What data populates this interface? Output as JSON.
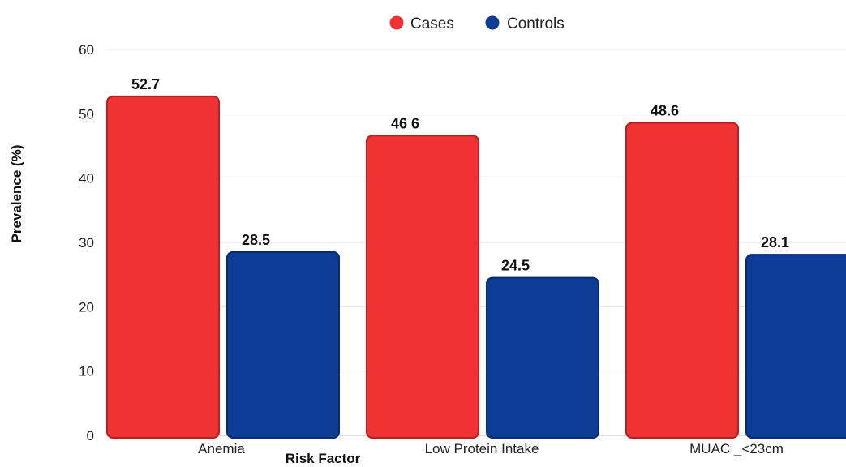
{
  "chart_data": {
    "type": "bar",
    "title": "",
    "xlabel": "Risk Factor",
    "ylabel": "Prevalence (%)",
    "ylim": [
      0,
      60
    ],
    "yticks": [
      0,
      10,
      20,
      30,
      40,
      50,
      60
    ],
    "grid": true,
    "legend_position": "top-center",
    "categories": [
      "Anemia",
      "Low Protein Intake",
      "MUAC _<23cm"
    ],
    "series": [
      {
        "name": "Cases",
        "color": "#f03232",
        "values": [
          52.7,
          46.6,
          48.6
        ],
        "labels": [
          "52.7",
          "46 6",
          "48.6"
        ]
      },
      {
        "name": "Controls",
        "color": "#0d3c96",
        "values": [
          28.5,
          24.5,
          28.1
        ],
        "labels": [
          "28.5",
          "24.5",
          "28.1"
        ]
      }
    ]
  }
}
